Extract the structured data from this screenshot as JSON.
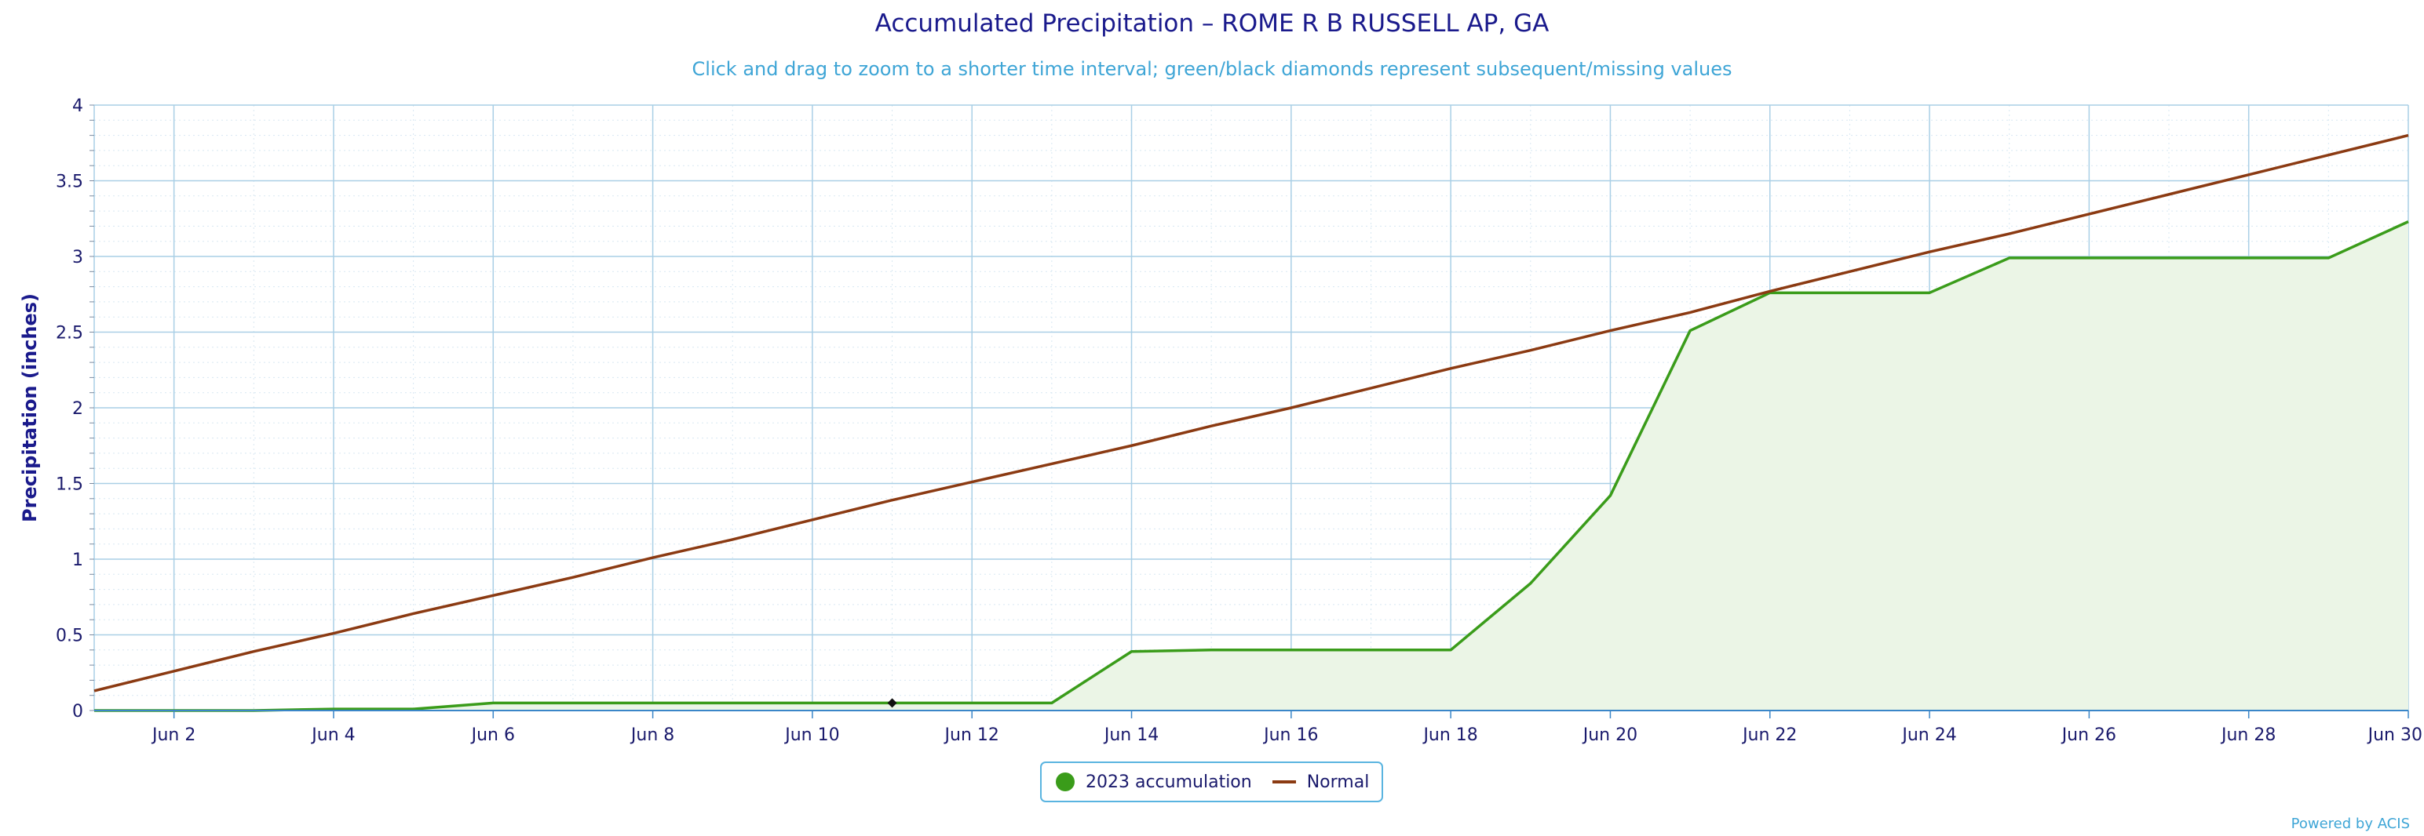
{
  "title": "Accumulated Precipitation – ROME R B RUSSELL AP, GA",
  "subtitle": "Click and drag to zoom to a shorter time interval; green/black diamonds represent subsequent/missing values",
  "credits": "Powered by ACIS",
  "colors": {
    "accumulation_line": "#3a9c1a",
    "accumulation_fill": "#ebf5e6",
    "normal_line": "#8b3a12",
    "grid": "#a9cfe6",
    "axis_text": "#1a1a6c",
    "title_text": "#1a1a8c",
    "subtitle_text": "#3ea5d6",
    "missing_marker": "#111111"
  },
  "chart_data": {
    "type": "area",
    "ylabel": "Precipitation (inches)",
    "ylim": [
      0,
      4
    ],
    "yticks": [
      0,
      0.5,
      1,
      1.5,
      2,
      2.5,
      3,
      3.5,
      4
    ],
    "ytick_labels": [
      "0",
      "0.5",
      "1",
      "1.5",
      "2",
      "2.5",
      "3",
      "3.5",
      "4"
    ],
    "xlim": [
      1,
      30
    ],
    "xticks": [
      2,
      4,
      6,
      8,
      10,
      12,
      14,
      16,
      18,
      20,
      22,
      24,
      26,
      28,
      30
    ],
    "xtick_labels": [
      "Jun 2",
      "Jun 4",
      "Jun 6",
      "Jun 8",
      "Jun 10",
      "Jun 12",
      "Jun 14",
      "Jun 16",
      "Jun 18",
      "Jun 20",
      "Jun 22",
      "Jun 24",
      "Jun 26",
      "Jun 28",
      "Jun 30"
    ],
    "grid": true,
    "legend_position": "bottom-center",
    "series": [
      {
        "name": "2023 accumulation",
        "type": "area",
        "x": [
          1,
          2,
          3,
          4,
          5,
          6,
          7,
          8,
          9,
          10,
          11,
          12,
          13,
          14,
          15,
          16,
          17,
          18,
          19,
          20,
          21,
          22,
          23,
          24,
          25,
          26,
          27,
          28,
          29,
          30
        ],
        "values": [
          0,
          0,
          0,
          0.01,
          0.01,
          0.05,
          0.05,
          0.05,
          0.05,
          0.05,
          0.05,
          0.05,
          0.05,
          0.39,
          0.4,
          0.4,
          0.4,
          0.4,
          0.84,
          1.42,
          2.51,
          2.76,
          2.76,
          2.76,
          2.99,
          2.99,
          2.99,
          2.99,
          2.99,
          3.23
        ]
      },
      {
        "name": "Normal",
        "type": "line",
        "x": [
          1,
          2,
          3,
          4,
          5,
          6,
          7,
          8,
          9,
          10,
          11,
          12,
          13,
          14,
          15,
          16,
          17,
          18,
          19,
          20,
          21,
          22,
          23,
          24,
          25,
          26,
          27,
          28,
          29,
          30
        ],
        "values": [
          0.13,
          0.26,
          0.39,
          0.51,
          0.64,
          0.76,
          0.88,
          1.01,
          1.13,
          1.26,
          1.39,
          1.51,
          1.63,
          1.75,
          1.88,
          2.0,
          2.13,
          2.26,
          2.38,
          2.51,
          2.63,
          2.77,
          2.9,
          3.03,
          3.15,
          3.28,
          3.41,
          3.54,
          3.67,
          3.8
        ]
      }
    ],
    "missing_markers": [
      {
        "x": 11,
        "y": 0.05
      }
    ]
  }
}
